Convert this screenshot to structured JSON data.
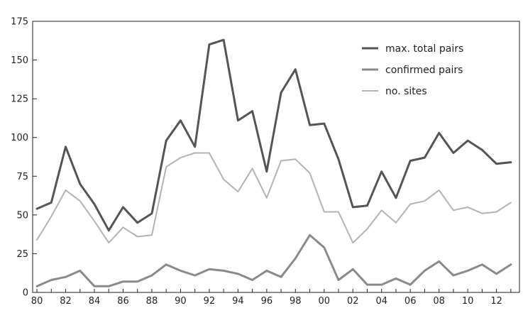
{
  "chart_data": {
    "type": "line",
    "title": "",
    "xlabel": "",
    "ylabel": "",
    "xlim": [
      1979.7,
      2013.6
    ],
    "ylim": [
      0,
      175
    ],
    "yticks": [
      0,
      25,
      50,
      75,
      100,
      125,
      150,
      175
    ],
    "xticks": [
      {
        "value": 1980,
        "label": "80"
      },
      {
        "value": 1982,
        "label": "82"
      },
      {
        "value": 1984,
        "label": "84"
      },
      {
        "value": 1986,
        "label": "86"
      },
      {
        "value": 1988,
        "label": "88"
      },
      {
        "value": 1990,
        "label": "90"
      },
      {
        "value": 1992,
        "label": "92"
      },
      {
        "value": 1994,
        "label": "94"
      },
      {
        "value": 1996,
        "label": "96"
      },
      {
        "value": 1998,
        "label": "98"
      },
      {
        "value": 2000,
        "label": "00"
      },
      {
        "value": 2002,
        "label": "02"
      },
      {
        "value": 2004,
        "label": "04"
      },
      {
        "value": 2006,
        "label": "06"
      },
      {
        "value": 2008,
        "label": "08"
      },
      {
        "value": 2010,
        "label": "10"
      },
      {
        "value": 2012,
        "label": "12"
      }
    ],
    "grid": false,
    "legend_position": "top-right",
    "x": [
      1980,
      1981,
      1982,
      1983,
      1984,
      1985,
      1986,
      1987,
      1988,
      1989,
      1990,
      1991,
      1992,
      1993,
      1994,
      1995,
      1996,
      1997,
      1998,
      1999,
      2000,
      2001,
      2002,
      2003,
      2004,
      2005,
      2006,
      2007,
      2008,
      2009,
      2010,
      2011,
      2012,
      2013
    ],
    "series": [
      {
        "name": "max. total pairs",
        "color": "#555555",
        "width": 3,
        "values": [
          54,
          58,
          94,
          70,
          57,
          40,
          55,
          45,
          51,
          98,
          111,
          94,
          160,
          163,
          111,
          117,
          78,
          129,
          144,
          108,
          109,
          86,
          55,
          56,
          78,
          61,
          85,
          87,
          103,
          90,
          98,
          92,
          83,
          84
        ]
      },
      {
        "name": "confirmed pairs",
        "color": "#8a8a8a",
        "width": 3,
        "values": [
          4,
          8,
          10,
          14,
          4,
          4,
          7,
          7,
          11,
          18,
          14,
          11,
          15,
          14,
          12,
          8,
          14,
          10,
          22,
          37,
          29,
          8,
          15,
          5,
          5,
          9,
          5,
          14,
          20,
          11,
          14,
          18,
          12,
          18
        ]
      },
      {
        "name": "no. sites",
        "color": "#b3b3b3",
        "width": 2,
        "values": [
          34,
          49,
          66,
          59,
          46,
          32,
          42,
          36,
          37,
          81,
          87,
          90,
          90,
          73,
          65,
          80,
          61,
          85,
          86,
          77,
          52,
          52,
          32,
          41,
          53,
          45,
          57,
          59,
          66,
          53,
          55,
          51,
          52,
          58
        ]
      }
    ]
  }
}
